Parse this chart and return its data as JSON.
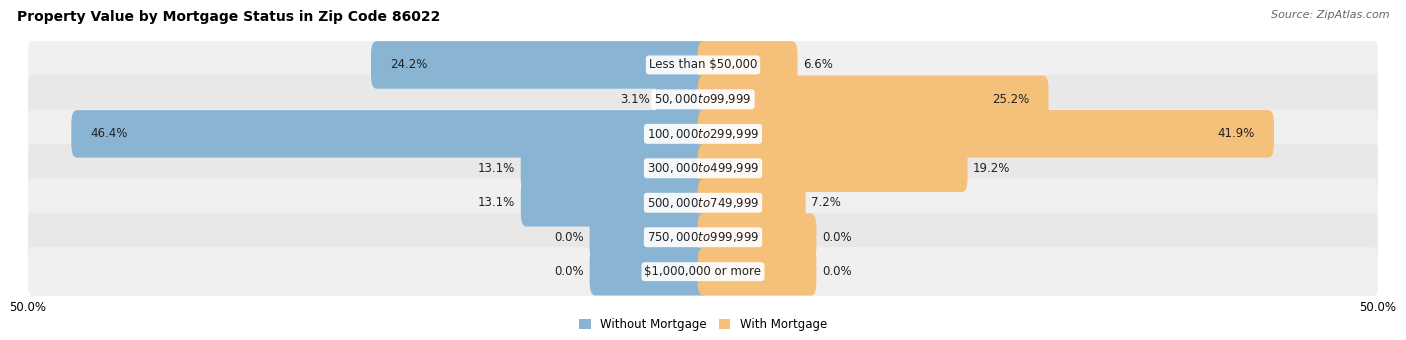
{
  "title": "Property Value by Mortgage Status in Zip Code 86022",
  "source": "Source: ZipAtlas.com",
  "categories": [
    "Less than $50,000",
    "$50,000 to $99,999",
    "$100,000 to $299,999",
    "$300,000 to $499,999",
    "$500,000 to $749,999",
    "$750,000 to $999,999",
    "$1,000,000 or more"
  ],
  "without_mortgage": [
    24.2,
    3.1,
    46.4,
    13.1,
    13.1,
    0.0,
    0.0
  ],
  "with_mortgage": [
    6.6,
    25.2,
    41.9,
    19.2,
    7.2,
    0.0,
    0.0
  ],
  "color_without": "#8ab4d4",
  "color_with": "#f5c07a",
  "row_bg_even": "#f0f0f0",
  "row_bg_odd": "#e8e8e8",
  "x_min": -50.0,
  "x_max": 50.0,
  "title_fontsize": 10,
  "source_fontsize": 8,
  "label_fontsize": 8.5,
  "category_fontsize": 8.5,
  "legend_fontsize": 8.5,
  "zero_bar_width": 8.0,
  "zero_bar_display": true
}
